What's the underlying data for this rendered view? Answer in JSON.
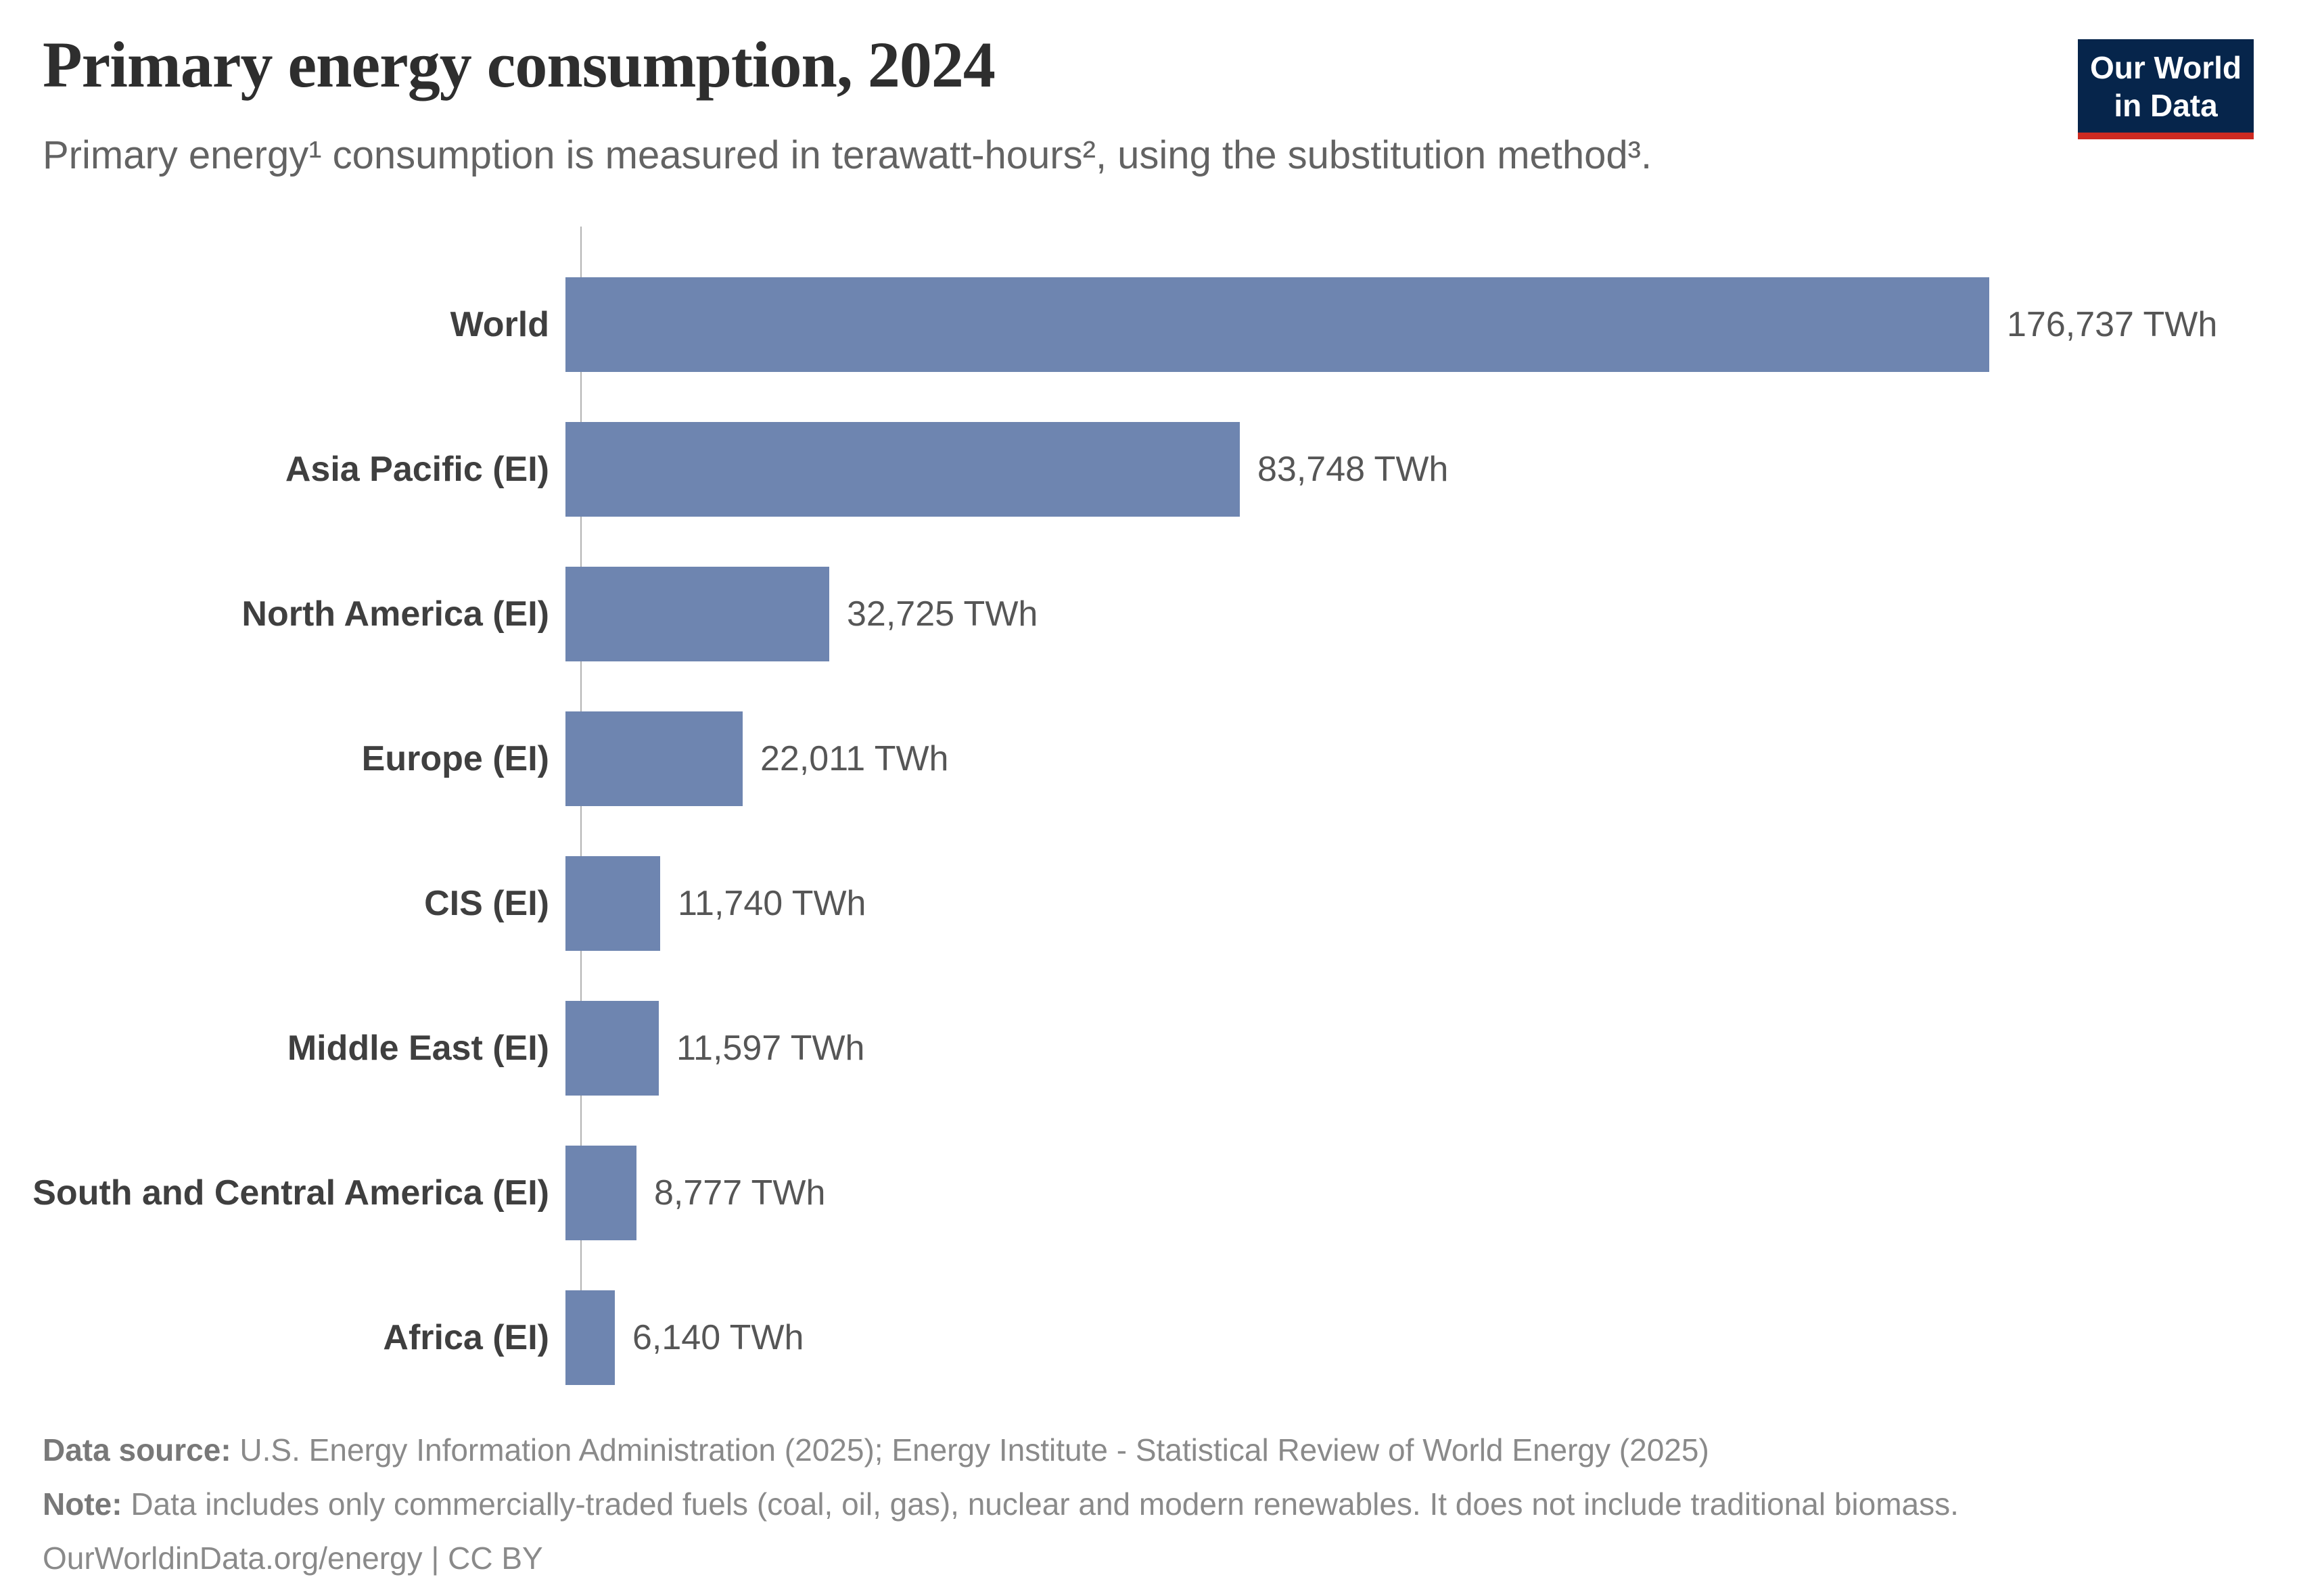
{
  "header": {
    "title": "Primary energy consumption, 2024",
    "subtitle": "Primary energy¹ consumption is measured in terawatt-hours², using the substitution method³.",
    "logo": {
      "line1": "Our World",
      "line2": "in Data"
    }
  },
  "chart_data": {
    "type": "bar",
    "orientation": "horizontal",
    "title": "Primary energy consumption, 2024",
    "unit": "TWh",
    "categories": [
      "World",
      "Asia Pacific (EI)",
      "North America (EI)",
      "Europe (EI)",
      "CIS (EI)",
      "Middle East (EI)",
      "South and Central America (EI)",
      "Africa (EI)"
    ],
    "values": [
      176737,
      83748,
      32725,
      22011,
      11740,
      11597,
      8777,
      6140
    ],
    "value_labels": [
      "176,737 TWh",
      "83,748 TWh",
      "32,725 TWh",
      "22,011 TWh",
      "11,740 TWh",
      "11,597 TWh",
      "8,777 TWh",
      "6,140 TWh"
    ],
    "xlim": [
      0,
      176737
    ],
    "grid": false,
    "legend": "none",
    "bar_color": "#6e85b0"
  },
  "footer": {
    "source_label": "Data source:",
    "source_text": " U.S. Energy Information Administration (2025); Energy Institute - Statistical Review of World Energy (2025)",
    "note_label": "Note:",
    "note_text": " Data includes only commercially-traded fuels (coal, oil, gas), nuclear and modern renewables. It does not include traditional biomass.",
    "url": "OurWorldinData.org/energy",
    "separator": " | ",
    "license": "CC BY"
  },
  "colors": {
    "bar": "#6e85b0",
    "logo_navy": "#06254b",
    "logo_red": "#cd2a21",
    "axis": "#b3b3b3"
  }
}
